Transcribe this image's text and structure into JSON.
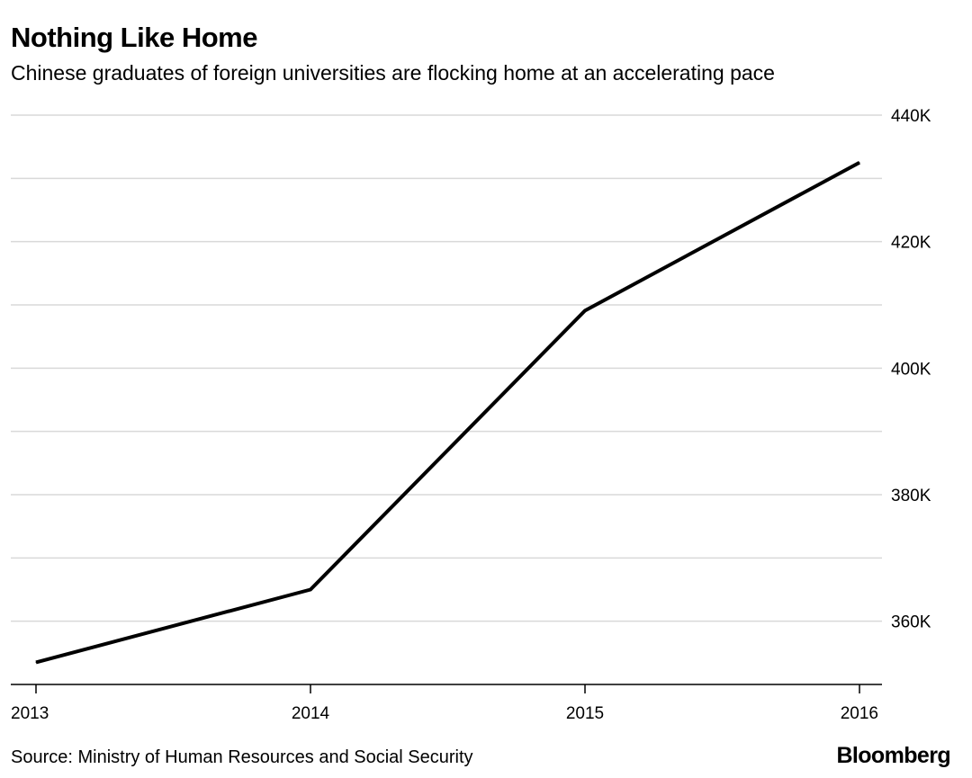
{
  "header": {
    "title": "Nothing Like Home",
    "subtitle": "Chinese graduates of foreign universities are flocking home at an accelerating pace"
  },
  "footer": {
    "source": "Source: Ministry of Human Resources and Social Security",
    "brand": "Bloomberg"
  },
  "colors": {
    "line": "#000000",
    "grid": "#d9d9d9",
    "axis": "#000000"
  },
  "chart_data": {
    "type": "line",
    "title": "Nothing Like Home",
    "subtitle": "Chinese graduates of foreign universities are flocking home at an accelerating pace",
    "x": [
      "2013",
      "2014",
      "2015",
      "2016"
    ],
    "series": [
      {
        "values": [
          353500,
          365000,
          409100,
          432500
        ]
      }
    ],
    "yticks": [
      360000,
      380000,
      400000,
      420000,
      440000
    ],
    "ytick_labels": [
      "360K",
      "380K",
      "400K",
      "420K",
      "440K"
    ],
    "ylim": [
      350000,
      440000
    ],
    "y_axis_position": "right",
    "grid": true,
    "legend": "none"
  }
}
